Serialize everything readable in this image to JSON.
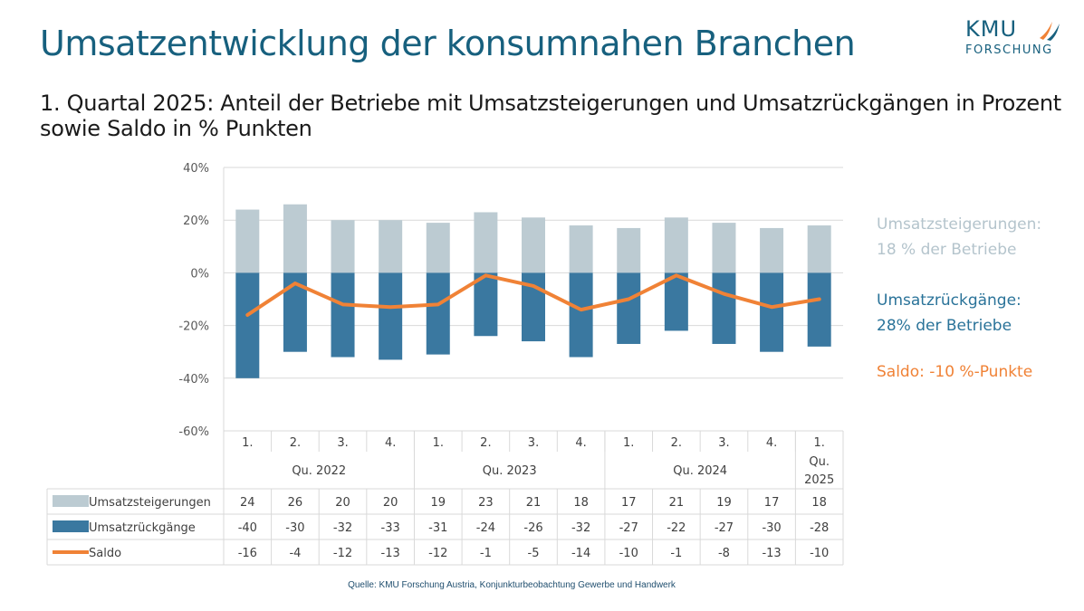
{
  "title": "Umsatzentwicklung der konsumnahen Branchen",
  "subtitle": "1. Quartal 2025: Anteil der Betriebe mit Umsatzsteigerungen und Umsatzrückgängen in Prozent sowie Saldo in % Punkten",
  "logo": {
    "line1": "KMU",
    "line2": "FORSCHUNG"
  },
  "legend_notes": {
    "up_title": "Umsatzsteigerungen:",
    "up_value": "18 % der Betriebe",
    "down_title": "Umsatzrückgänge:",
    "down_value": "28%  der Betriebe",
    "saldo": "Saldo: -10 %-Punkte"
  },
  "source": "Quelle: KMU Forschung Austria, Konjunkturbeobachtung Gewerbe und Handwerk",
  "colors": {
    "up": "#bccbd2",
    "down": "#3a78a0",
    "saldo": "#f08236",
    "accent": "#17607e"
  },
  "chart_data": {
    "type": "bar",
    "categories": [
      "1.",
      "2.",
      "3.",
      "4.",
      "1.",
      "2.",
      "3.",
      "4.",
      "1.",
      "2.",
      "3.",
      "4.",
      "1."
    ],
    "groups": [
      {
        "label": "Qu. 2022",
        "count": 4
      },
      {
        "label": "Qu. 2023",
        "count": 4
      },
      {
        "label": "Qu. 2024",
        "count": 4
      },
      {
        "label": "Qu.\n2025",
        "count": 1
      }
    ],
    "y_ticks": [
      "40%",
      "20%",
      "0%",
      "-20%",
      "-40%",
      "-60%"
    ],
    "ylim": [
      -60,
      40
    ],
    "series": [
      {
        "name": "Umsatzsteigerungen",
        "type": "bar",
        "values": [
          24,
          26,
          20,
          20,
          19,
          23,
          21,
          18,
          17,
          21,
          19,
          17,
          18
        ]
      },
      {
        "name": "Umsatzrückgänge",
        "type": "bar",
        "values": [
          -40,
          -30,
          -32,
          -33,
          -31,
          -24,
          -26,
          -32,
          -27,
          -22,
          -27,
          -30,
          -28
        ]
      },
      {
        "name": "Saldo",
        "type": "line",
        "values": [
          -16,
          -4,
          -12,
          -13,
          -12,
          -1,
          -5,
          -14,
          -10,
          -1,
          -8,
          -13,
          -10
        ]
      }
    ],
    "grid": true,
    "data_table": true
  }
}
